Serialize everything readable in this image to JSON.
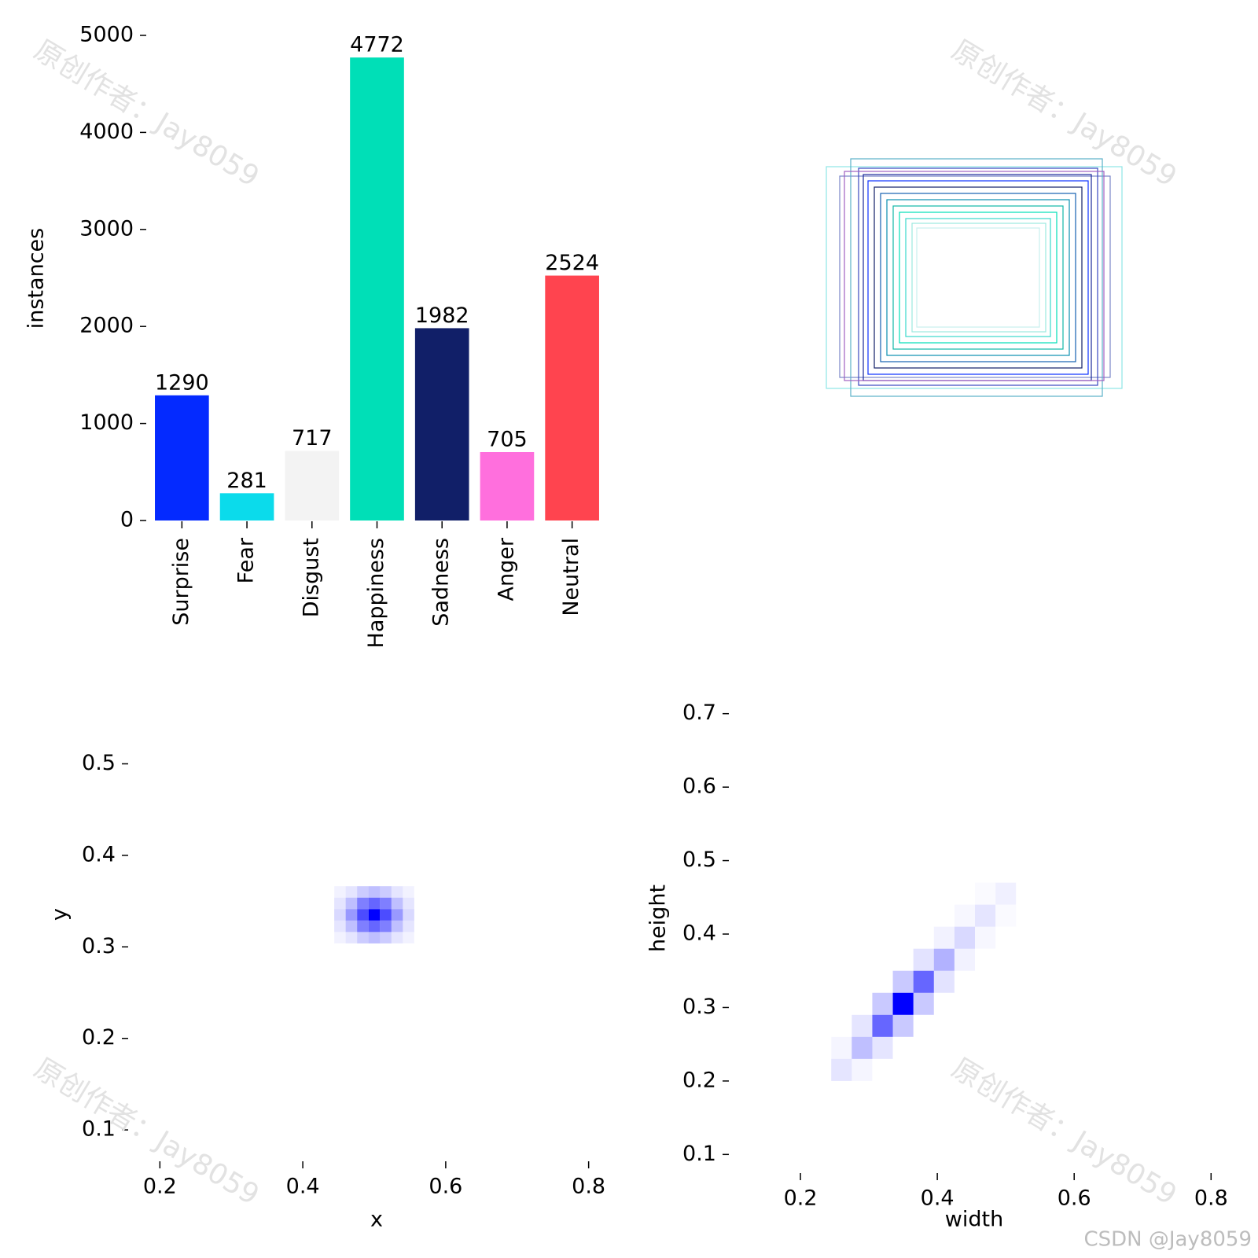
{
  "chart_data": [
    {
      "type": "bar",
      "ylabel": "instances",
      "categories": [
        "Surprise",
        "Fear",
        "Disgust",
        "Happiness",
        "Sadness",
        "Anger",
        "Neutral"
      ],
      "values": [
        1290,
        281,
        717,
        4772,
        1982,
        705,
        2524
      ],
      "colors": [
        "#042aff",
        "#0bdbeb",
        "#f3f3f3",
        "#00dfb7",
        "#111f68",
        "#ff6fdd",
        "#ff444f"
      ],
      "ylim": [
        0,
        5000
      ],
      "yticks": [
        0,
        1000,
        2000,
        3000,
        4000,
        5000
      ]
    },
    {
      "type": "hist2d",
      "xlabel": "x",
      "ylabel": "y",
      "color": "#0000ff",
      "x": [
        0.452,
        0.468,
        0.484,
        0.5,
        0.516,
        0.532,
        0.548
      ],
      "y": [
        0.31,
        0.3225,
        0.335,
        0.3475,
        0.36
      ],
      "values": [
        [
          0.05,
          0.1,
          0.2,
          0.25,
          0.2,
          0.1,
          0.05
        ],
        [
          0.1,
          0.25,
          0.5,
          0.6,
          0.5,
          0.25,
          0.1
        ],
        [
          0.15,
          0.4,
          0.7,
          1,
          0.7,
          0.4,
          0.15
        ],
        [
          0.1,
          0.25,
          0.5,
          0.6,
          0.5,
          0.25,
          0.1
        ],
        [
          0.05,
          0.1,
          0.2,
          0.25,
          0.2,
          0.1,
          0.05
        ]
      ],
      "xlim": [
        0.16,
        0.84
      ],
      "ylim": [
        0.07,
        0.57
      ],
      "xticks": [
        0.2,
        0.4,
        0.6,
        0.8
      ],
      "yticks": [
        0.1,
        0.2,
        0.3,
        0.4,
        0.5
      ]
    },
    {
      "type": "hist2d",
      "xlabel": "width",
      "ylabel": "height",
      "color": "#0000ff",
      "x": [
        0.26,
        0.29,
        0.32,
        0.35,
        0.38,
        0.41,
        0.44,
        0.47,
        0.5
      ],
      "y": [
        0.215,
        0.245,
        0.275,
        0.305,
        0.335,
        0.365,
        0.395,
        0.425,
        0.455
      ],
      "values": [
        [
          0.1,
          0.04,
          0,
          0,
          0,
          0,
          0,
          0,
          0
        ],
        [
          0.04,
          0.25,
          0.1,
          0,
          0,
          0,
          0,
          0,
          0
        ],
        [
          0,
          0.1,
          0.6,
          0.21,
          0,
          0,
          0,
          0,
          0
        ],
        [
          0,
          0,
          0.21,
          1,
          0.21,
          0,
          0,
          0,
          0
        ],
        [
          0,
          0,
          0,
          0.21,
          0.6,
          0.11,
          0,
          0,
          0
        ],
        [
          0,
          0,
          0,
          0,
          0.11,
          0.3,
          0.05,
          0,
          0
        ],
        [
          0,
          0,
          0,
          0,
          0,
          0.05,
          0.15,
          0.03,
          0
        ],
        [
          0,
          0,
          0,
          0,
          0,
          0,
          0.03,
          0.1,
          0.02
        ],
        [
          0,
          0,
          0,
          0,
          0,
          0,
          0,
          0.02,
          0.06
        ]
      ],
      "xlim": [
        0.1,
        0.81
      ],
      "ylim": [
        0.08,
        0.72
      ],
      "xticks": [
        0.2,
        0.4,
        0.6,
        0.8
      ],
      "yticks": [
        0.1,
        0.2,
        0.3,
        0.4,
        0.5,
        0.6,
        0.7
      ]
    }
  ],
  "watermark": "原创作者：Jay8059",
  "credit": "CSDN @Jay8059"
}
